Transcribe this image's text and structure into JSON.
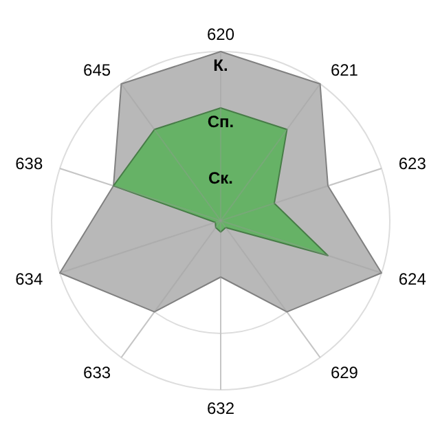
{
  "chart_data": {
    "type": "radar",
    "categories": [
      "620",
      "621",
      "623",
      "624",
      "629",
      "632",
      "633",
      "634",
      "638",
      "645"
    ],
    "ylim": [
      0,
      3
    ],
    "yticks": [
      {
        "value": 1,
        "label": "Ск."
      },
      {
        "value": 2,
        "label": "Сп."
      },
      {
        "value": 3,
        "label": "К."
      }
    ],
    "grid": true,
    "series": [
      {
        "color": "#b8b8b8",
        "values": [
          3,
          3,
          2,
          3,
          2,
          1,
          2,
          3,
          2,
          3
        ]
      },
      {
        "color": "#66b266",
        "values": [
          2,
          2,
          1,
          2,
          0.15,
          0.2,
          0.15,
          0.1,
          2,
          2
        ]
      }
    ]
  }
}
